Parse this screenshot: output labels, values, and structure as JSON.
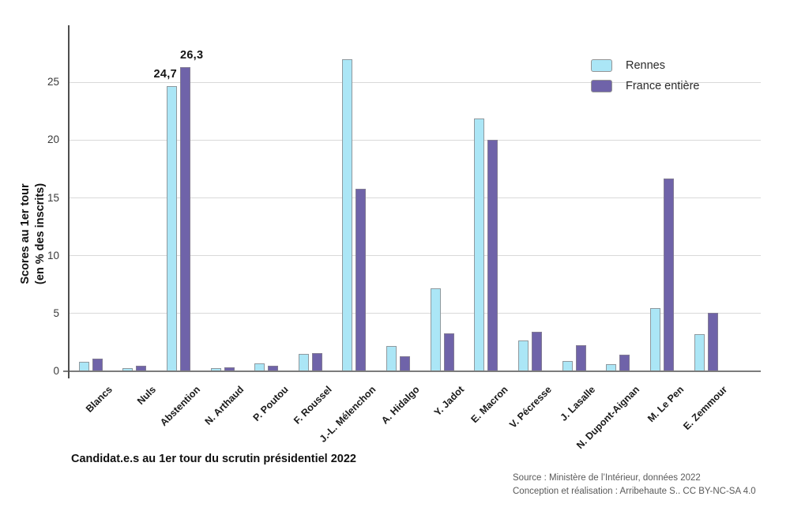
{
  "chart_data": {
    "type": "bar",
    "title": "Candidat.e.s au 1er tour du scrutin présidentiel 2022",
    "ylabel_lines": [
      "Scores au 1er tour",
      "(en % des inscrits)"
    ],
    "categories": [
      "Blancs",
      "Nuls",
      "Abstention",
      "N. Arthaud",
      "P. Poutou",
      "F. Roussel",
      "J.-L. Mélenchon",
      "A. Hidalgo",
      "Y. Jadot",
      "E. Macron",
      "V. Pécresse",
      "J. Lasalle",
      "N. Dupont-Aignan",
      "M. Le Pen",
      "E. Zemmour"
    ],
    "series": [
      {
        "name": "Rennes",
        "color": "#abe6f6",
        "border_color": "#8f999e",
        "values": [
          0.85,
          0.3,
          24.7,
          0.25,
          0.65,
          1.5,
          27.0,
          2.2,
          7.2,
          21.9,
          2.7,
          0.9,
          0.6,
          5.5,
          3.2
        ]
      },
      {
        "name": "France entière",
        "color": "#6f63a9",
        "border_color": "#827b94",
        "values": [
          1.1,
          0.45,
          26.3,
          0.35,
          0.5,
          1.6,
          15.8,
          1.3,
          3.3,
          20.0,
          3.4,
          2.25,
          1.45,
          16.65,
          5.05
        ]
      }
    ],
    "yticks": [
      0,
      5,
      10,
      15,
      20,
      25
    ],
    "ylim": [
      0,
      30
    ],
    "grid": true,
    "legend_position": "top-right",
    "annotations": [
      {
        "category_index": 2,
        "series_index": 0,
        "label": "24,7"
      },
      {
        "category_index": 2,
        "series_index": 1,
        "label": "26,3"
      }
    ]
  },
  "source": {
    "line1": "Source : Ministère de l’Intérieur, données 2022",
    "line2": "Conception et réalisation : Arribehaute S.. CC BY-NC-SA 4.0"
  }
}
